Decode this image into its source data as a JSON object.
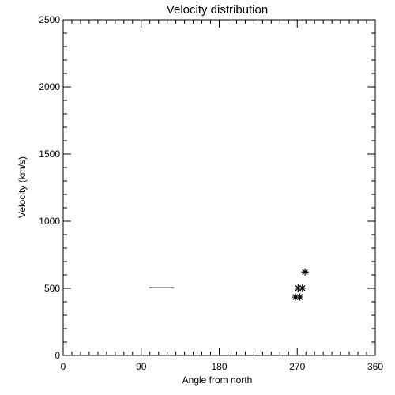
{
  "chart_data": {
    "type": "scatter",
    "title": "Velocity distribution",
    "xlabel": "Angle from north",
    "ylabel": "Velocity (km/s)",
    "xlim": [
      0,
      360
    ],
    "ylim": [
      0,
      2500
    ],
    "xticks": [
      0,
      90,
      180,
      270,
      360
    ],
    "yticks": [
      0,
      500,
      1000,
      1500,
      2000,
      2500
    ],
    "x_minor_step": 10,
    "y_minor_step": 100,
    "grid": false,
    "legend": "none",
    "series": [
      {
        "marker": "asterisk",
        "points": [
          {
            "x": 279,
            "y": 622
          },
          {
            "x": 271,
            "y": 502
          },
          {
            "x": 276,
            "y": 502
          },
          {
            "x": 268,
            "y": 435
          },
          {
            "x": 273,
            "y": 435
          }
        ]
      },
      {
        "marker": "line",
        "points": [
          {
            "x": 99,
            "y": 505
          },
          {
            "x": 128,
            "y": 505
          }
        ]
      }
    ]
  }
}
